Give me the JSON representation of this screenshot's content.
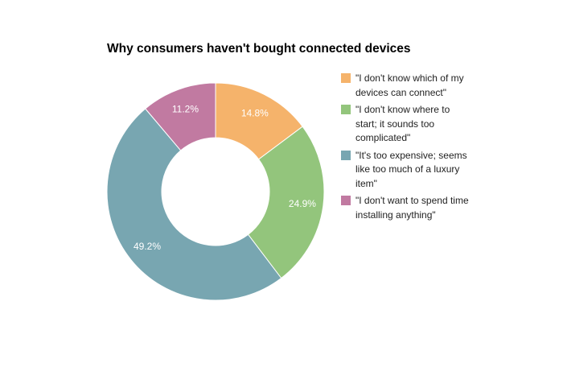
{
  "chart_data": {
    "type": "pie",
    "title": "Why consumers haven't bought connected devices",
    "donut": true,
    "legend_position": "right",
    "slices": [
      {
        "label": "\"I don't know which of my devices can connect\"",
        "value": 14.8,
        "value_label": "14.8%",
        "color": "#f5b36b"
      },
      {
        "label": "\"I don't know where to start; it sounds too complicated\"",
        "value": 24.9,
        "value_label": "24.9%",
        "color": "#93c57c"
      },
      {
        "label": "\"It's too expensive; seems like too much of a luxury item\"",
        "value": 49.2,
        "value_label": "49.2%",
        "color": "#78a6b1"
      },
      {
        "label": "\"I don't want to spend time installing anything\"",
        "value": 11.2,
        "value_label": "11.2%",
        "color": "#c17aa1"
      }
    ]
  }
}
